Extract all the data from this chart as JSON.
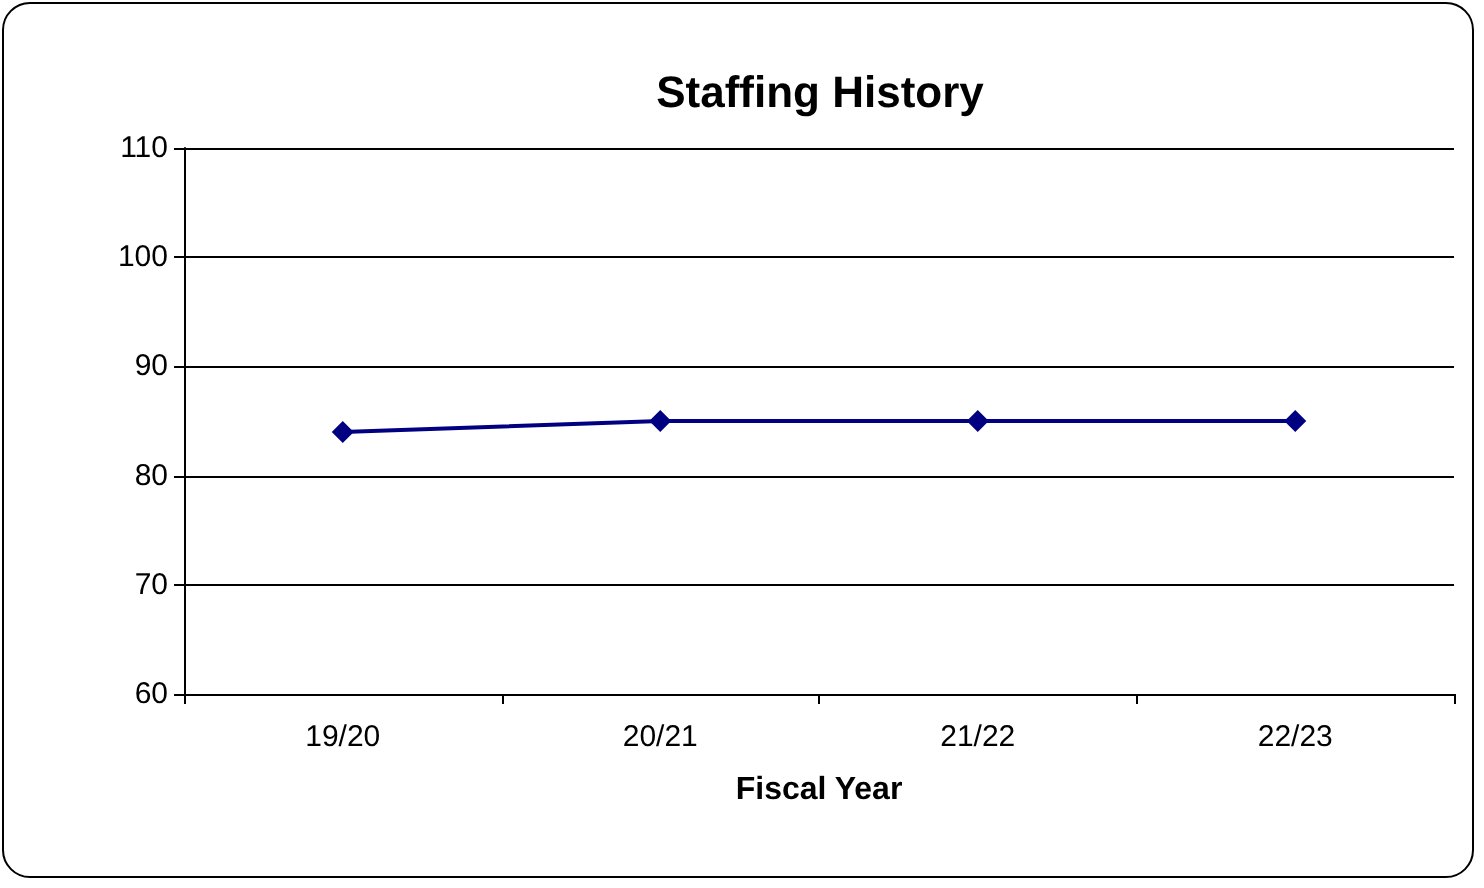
{
  "chart_data": {
    "type": "line",
    "title": "Staffing History",
    "xlabel": "Fiscal Year",
    "categories": [
      "19/20",
      "20/21",
      "21/22",
      "22/23"
    ],
    "series": [
      {
        "color": "#000080",
        "values": [
          84,
          85,
          85,
          85
        ]
      }
    ],
    "ylim": [
      60,
      110
    ],
    "yticks": [
      60,
      70,
      80,
      90,
      100,
      110
    ],
    "grid": "y",
    "marker": "diamond",
    "line_style": "solid"
  }
}
